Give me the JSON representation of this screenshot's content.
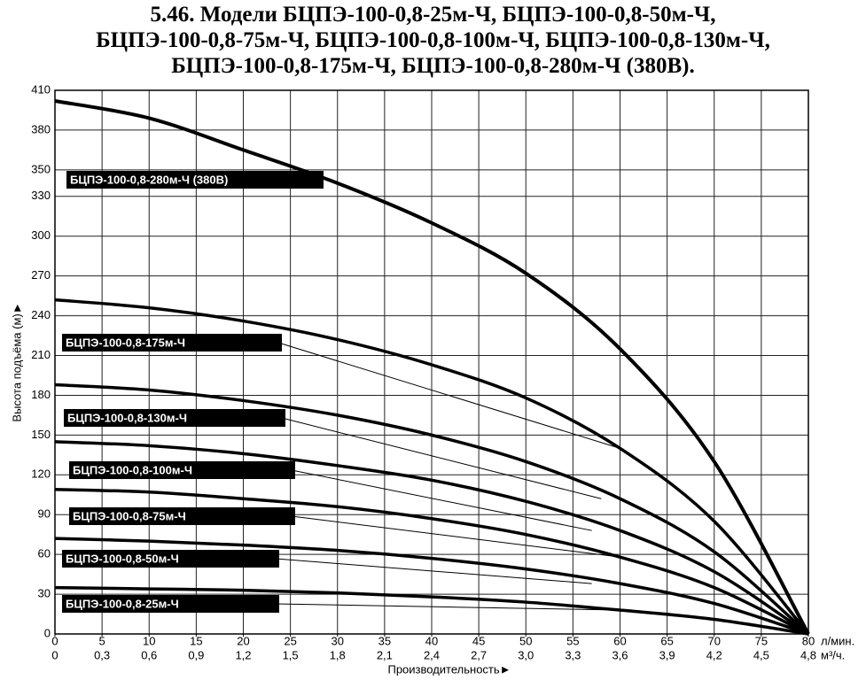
{
  "chart_data": {
    "type": "line",
    "title": [
      "5.46. Модели БЦПЭ-100-0,8-25м-Ч, БЦПЭ-100-0,8-50м-Ч,",
      "БЦПЭ-100-0,8-75м-Ч, БЦПЭ-100-0,8-100м-Ч, БЦПЭ-100-0,8-130м-Ч,",
      "БЦПЭ-100-0,8-175м-Ч, БЦПЭ-100-0,8-280м-Ч (380В)."
    ],
    "xlabel": "Производительность►",
    "ylabel": "Высота подъёма (м)►",
    "x_unit": "л/мин.",
    "x2_unit": "м³/ч.",
    "x": [
      0,
      10,
      20,
      30,
      40,
      50,
      60,
      70,
      80
    ],
    "series": [
      {
        "name": "БЦПЭ-100-0,8-280м-Ч (380В)",
        "color": "#000000",
        "values": [
          402,
          389,
          365,
          340,
          310,
          272,
          215,
          130,
          0
        ]
      },
      {
        "name": "БЦПЭ-100-0,8-175м-Ч",
        "color": "#000000",
        "values": [
          252,
          246,
          236,
          222,
          203,
          178,
          140,
          85,
          0
        ]
      },
      {
        "name": "БЦПЭ-100-0,8-130м-Ч",
        "color": "#000000",
        "values": [
          188,
          184,
          176,
          165,
          150,
          130,
          102,
          62,
          0
        ]
      },
      {
        "name": "БЦПЭ-100-0,8-100м-Ч",
        "color": "#000000",
        "values": [
          145,
          142,
          136,
          127,
          116,
          100,
          78,
          47,
          0
        ]
      },
      {
        "name": "БЦПЭ-100-0,8-75м-Ч",
        "color": "#000000",
        "values": [
          109,
          107,
          102,
          96,
          87,
          75,
          58,
          35,
          0
        ]
      },
      {
        "name": "БЦПЭ-100-0,8-50м-Ч",
        "color": "#000000",
        "values": [
          72,
          70,
          67,
          63,
          57,
          49,
          38,
          23,
          0
        ]
      },
      {
        "name": "БЦПЭ-100-0,8-25м-Ч",
        "color": "#000000",
        "values": [
          35,
          34,
          33,
          31,
          28,
          24,
          18,
          11,
          0
        ]
      }
    ],
    "xlim": [
      0,
      80
    ],
    "xticks": [
      0,
      5,
      10,
      15,
      20,
      25,
      30,
      35,
      40,
      45,
      50,
      55,
      60,
      65,
      70,
      75,
      80
    ],
    "x2lim": [
      0,
      4.8
    ],
    "x2ticks": [
      0,
      {
        "value": 0.3,
        "label": "0,3"
      },
      {
        "value": 0.6,
        "label": "0,6"
      },
      {
        "value": 0.9,
        "label": "0,9"
      },
      {
        "value": 1.2,
        "label": "1,2"
      },
      {
        "value": 1.5,
        "label": "1,5"
      },
      {
        "value": 1.8,
        "label": "1,8"
      },
      {
        "value": 2.1,
        "label": "2,1"
      },
      {
        "value": 2.4,
        "label": "2,4"
      },
      {
        "value": 2.7,
        "label": "2,7"
      },
      {
        "value": 3.0,
        "label": "3,0"
      },
      {
        "value": 3.3,
        "label": "3,3"
      },
      {
        "value": 3.6,
        "label": "3,6"
      },
      {
        "value": 3.9,
        "label": "3,9"
      },
      {
        "value": 4.2,
        "label": "4,2"
      },
      {
        "value": 4.5,
        "label": "4,5"
      },
      {
        "value": 4.8,
        "label": "4,8"
      }
    ],
    "ylim": [
      0,
      410
    ],
    "yticks": [
      0,
      30,
      60,
      90,
      120,
      150,
      180,
      210,
      240,
      270,
      300,
      330,
      350,
      380,
      410
    ],
    "grid": true
  }
}
